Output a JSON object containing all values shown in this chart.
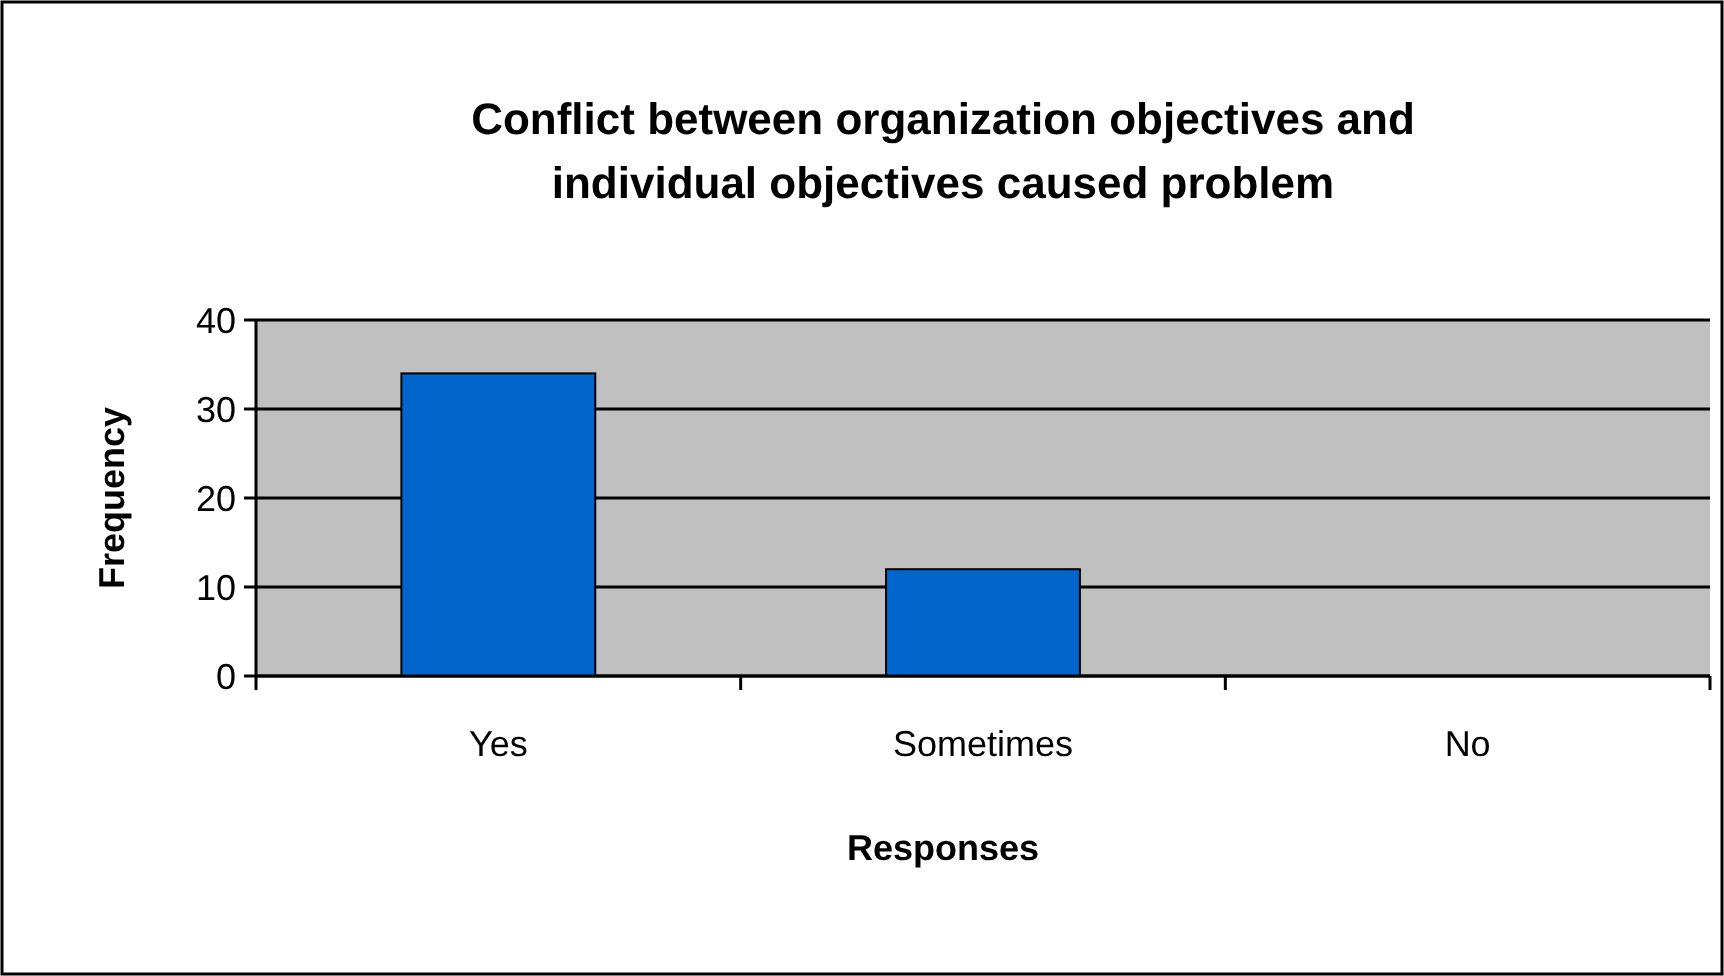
{
  "chart_data": {
    "type": "bar",
    "title": "Conflict between organization objectives and individual objectives caused problem",
    "xlabel": "Responses",
    "ylabel": "Frequency",
    "categories": [
      "Yes",
      "Sometimes",
      "No"
    ],
    "values": [
      34,
      12,
      0
    ],
    "color": "#0066cc",
    "ylim": [
      0,
      40
    ],
    "yticks": [
      0,
      10,
      20,
      30,
      40
    ],
    "grid": "y"
  }
}
